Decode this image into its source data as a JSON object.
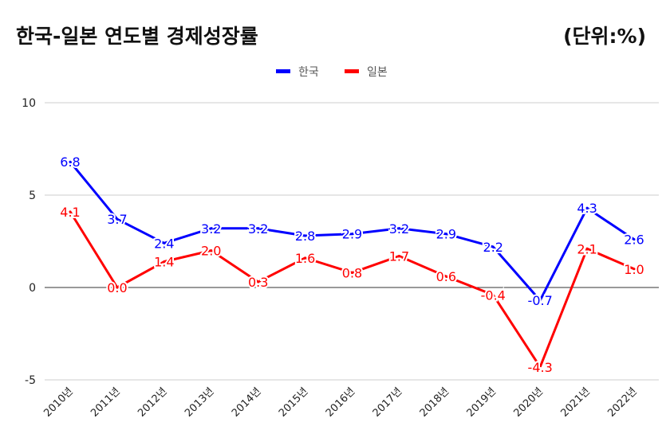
{
  "title": "한국-일본 연도별 경제성장률",
  "unit": "(단위:%)",
  "chart_data": {
    "type": "line",
    "title": "한국-일본 연도별 경제성장률",
    "unit": "(단위:%)",
    "categories": [
      "2010년",
      "2011년",
      "2012년",
      "2013년",
      "2014년",
      "2015년",
      "2016년",
      "2017년",
      "2018년",
      "2019년",
      "2020년",
      "2021년",
      "2022년"
    ],
    "series": [
      {
        "name": "한국",
        "color": "#0000ff",
        "values": [
          6.8,
          3.7,
          2.4,
          3.2,
          3.2,
          2.8,
          2.9,
          3.2,
          2.9,
          2.2,
          -0.7,
          4.3,
          2.6
        ],
        "labels": [
          "6.8",
          "3.7",
          "2.4",
          "3.2",
          "3.2",
          "2.8",
          "2.9",
          "3.2",
          "2.9",
          "2.2",
          "-0.7",
          "4.3",
          "2.6"
        ]
      },
      {
        "name": "일본",
        "color": "#ff0000",
        "values": [
          4.1,
          0.0,
          1.4,
          2.0,
          0.3,
          1.6,
          0.8,
          1.7,
          0.6,
          -0.4,
          -4.3,
          2.1,
          1.0
        ],
        "labels": [
          "4.1",
          "0.0",
          "1.4",
          "2.0",
          "0.3",
          "1.6",
          "0.8",
          "1.7",
          "0.6",
          "-0.4",
          "-4.3",
          "2.1",
          "1.0"
        ]
      }
    ],
    "yticks": [
      "10",
      "5",
      "0",
      "-5"
    ],
    "ytick_values": [
      10,
      5,
      0,
      -5
    ],
    "ylim": [
      -5,
      10
    ],
    "grid": true,
    "legend_position": "top-center"
  }
}
